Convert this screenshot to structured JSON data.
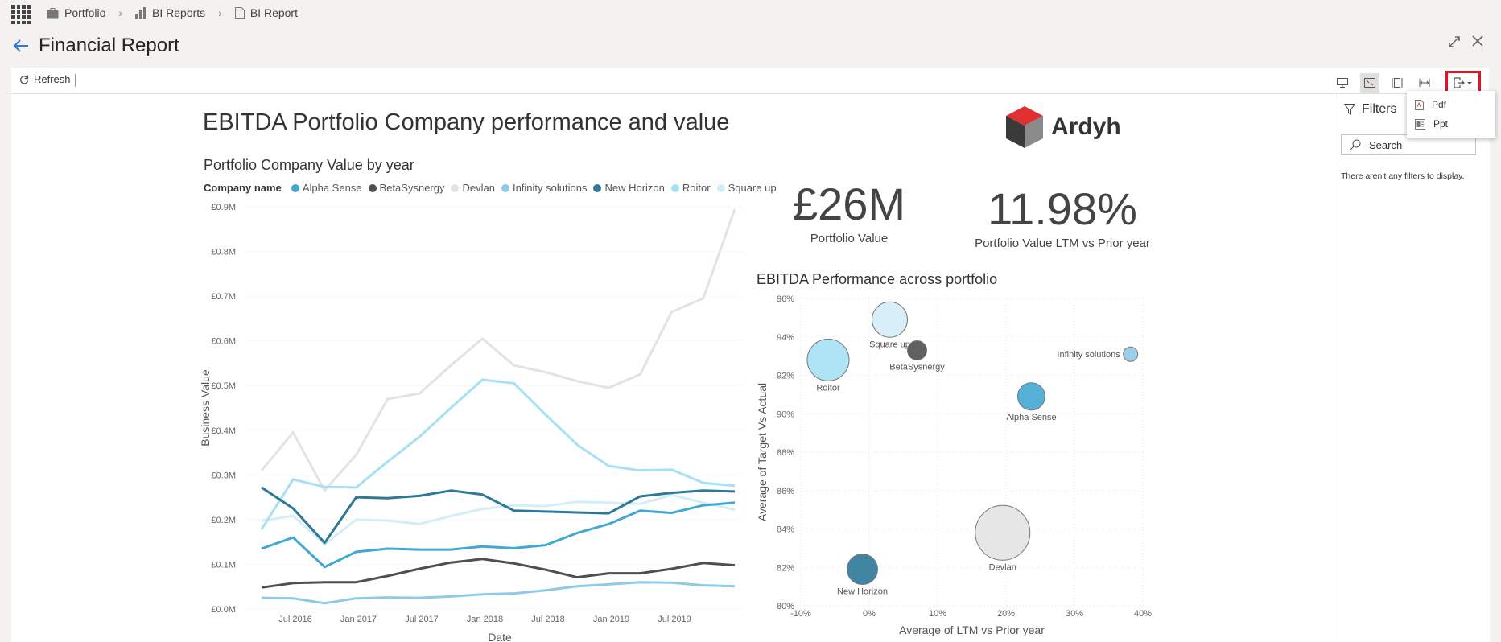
{
  "breadcrumb": [
    {
      "label": "Portfolio",
      "icon": "briefcase-icon"
    },
    {
      "label": "BI Reports",
      "icon": "bar-chart-icon"
    },
    {
      "label": "BI Report",
      "icon": "document-icon"
    }
  ],
  "page": {
    "title": "Financial Report"
  },
  "toolbar": {
    "refresh_label": "Refresh"
  },
  "export_menu": {
    "items": [
      "Pdf",
      "Ppt"
    ]
  },
  "report": {
    "title": "EBITDA Portfolio Company performance and value",
    "logo_text": "Ardyh"
  },
  "kpis": [
    {
      "value": "£26M",
      "label": "Portfolio Value"
    },
    {
      "value": "11.98%",
      "label": "Portfolio Value LTM vs Prior year"
    }
  ],
  "filters": {
    "title": "Filters",
    "search_placeholder": "Search",
    "empty_text": "There aren't any filters to display."
  },
  "colors": {
    "Alpha Sense": "#41a7d3",
    "BetaSysnergy": "#4f4f4f",
    "Devlan": "#e3e3e3",
    "Infinity solutions": "#8ecae6",
    "New Horizon": "#2e7898",
    "Roitor": "#a6e0f5",
    "Square up": "#d4edf8",
    "accent_red": "#e81123"
  },
  "chart_data": [
    {
      "type": "line",
      "title": "Portfolio Company Value by year",
      "legend_title": "Company name",
      "xlabel": "Date",
      "ylabel": "Business Value",
      "ylim": [
        0,
        0.9
      ],
      "yticks": [
        "£0.0M",
        "£0.1M",
        "£0.2M",
        "£0.3M",
        "£0.4M",
        "£0.5M",
        "£0.6M",
        "£0.7M",
        "£0.8M",
        "£0.9M"
      ],
      "xticks": [
        "Jul 2016",
        "Jan 2017",
        "Jul 2017",
        "Jan 2018",
        "Jul 2018",
        "Jan 2019",
        "Jul 2019"
      ],
      "series": [
        {
          "name": "Alpha Sense",
          "values": [
            0.135,
            0.16,
            0.094,
            0.128,
            0.135,
            0.133,
            0.133,
            0.14,
            0.136,
            0.143,
            0.17,
            0.19,
            0.22,
            0.215,
            0.232,
            0.238
          ]
        },
        {
          "name": "BetaSysnergy",
          "values": [
            0.048,
            0.058,
            0.06,
            0.06,
            0.074,
            0.09,
            0.104,
            0.112,
            0.102,
            0.088,
            0.071,
            0.08,
            0.08,
            0.09,
            0.103,
            0.098
          ]
        },
        {
          "name": "Devlan",
          "values": [
            0.31,
            0.395,
            0.265,
            0.345,
            0.47,
            0.482,
            0.545,
            0.605,
            0.545,
            0.53,
            0.51,
            0.495,
            0.525,
            0.665,
            0.695,
            0.895
          ]
        },
        {
          "name": "Infinity solutions",
          "values": [
            0.025,
            0.024,
            0.013,
            0.024,
            0.026,
            0.025,
            0.028,
            0.033,
            0.035,
            0.042,
            0.051,
            0.055,
            0.06,
            0.059,
            0.053,
            0.051
          ]
        },
        {
          "name": "New Horizon",
          "values": [
            0.272,
            0.225,
            0.148,
            0.25,
            0.248,
            0.253,
            0.265,
            0.256,
            0.22,
            0.218,
            0.216,
            0.214,
            0.252,
            0.26,
            0.265,
            0.263
          ]
        },
        {
          "name": "Roitor",
          "values": [
            0.178,
            0.29,
            0.273,
            0.272,
            0.33,
            0.385,
            0.45,
            0.513,
            0.505,
            0.435,
            0.368,
            0.32,
            0.31,
            0.312,
            0.282,
            0.276
          ]
        },
        {
          "name": "Square up",
          "values": [
            0.198,
            0.208,
            0.145,
            0.2,
            0.198,
            0.19,
            0.208,
            0.224,
            0.232,
            0.23,
            0.24,
            0.238,
            0.235,
            0.255,
            0.238,
            0.222
          ]
        }
      ]
    },
    {
      "type": "scatter",
      "title": "EBITDA Performance across portfolio",
      "xlabel": "Average of LTM vs Prior year",
      "ylabel": "Average of Target Vs Actual",
      "xlim": [
        -10,
        40
      ],
      "ylim": [
        80,
        96
      ],
      "xticks": [
        "-10%",
        "0%",
        "10%",
        "20%",
        "30%",
        "40%"
      ],
      "yticks": [
        "80%",
        "82%",
        "84%",
        "86%",
        "88%",
        "90%",
        "92%",
        "94%",
        "96%"
      ],
      "points": [
        {
          "name": "Square up",
          "x": 3,
          "y": 94.9,
          "size": 22
        },
        {
          "name": "BetaSysnergy",
          "x": 7,
          "y": 93.3,
          "size": 12
        },
        {
          "name": "Roitor",
          "x": -6,
          "y": 92.8,
          "size": 26
        },
        {
          "name": "Infinity solutions",
          "x": 38.2,
          "y": 93.1,
          "size": 9
        },
        {
          "name": "Alpha Sense",
          "x": 23.7,
          "y": 90.9,
          "size": 17
        },
        {
          "name": "Devlan",
          "x": 19.5,
          "y": 83.8,
          "size": 34
        },
        {
          "name": "New Horizon",
          "x": -1,
          "y": 81.9,
          "size": 19
        }
      ]
    }
  ]
}
